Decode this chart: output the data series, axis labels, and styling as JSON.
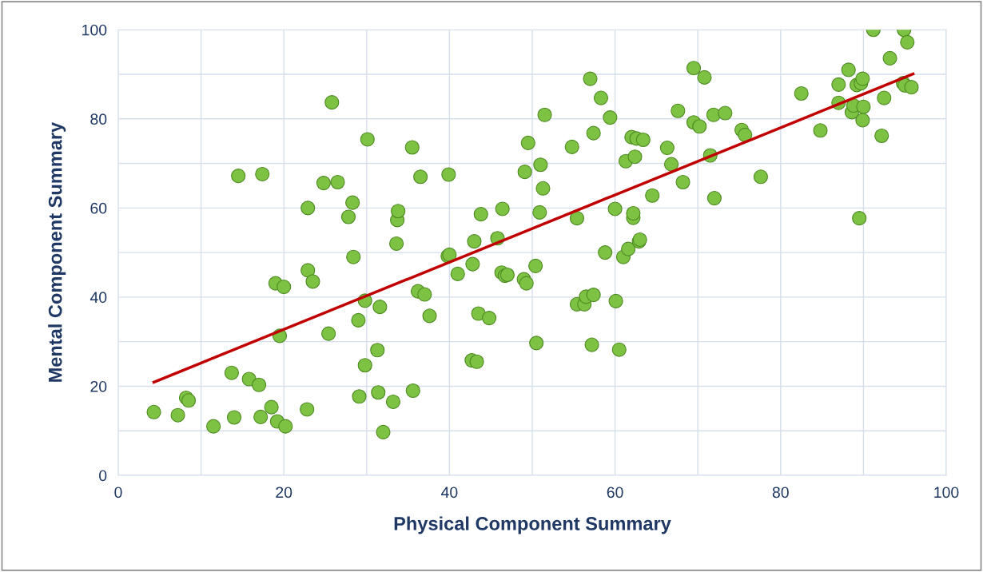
{
  "chart_data": {
    "type": "scatter",
    "xlabel": "Physical Component Summary",
    "ylabel": "Mental Component Summary",
    "xlim": [
      0,
      100
    ],
    "xticks": [
      0,
      20,
      40,
      60,
      80,
      100
    ],
    "ylim": [
      0,
      100
    ],
    "yticks": [
      0,
      20,
      40,
      60,
      80,
      100
    ],
    "grid": true,
    "series": [
      {
        "marker": "circle",
        "color": "#7dc242",
        "x": [
          4.3,
          7.2,
          8.2,
          8.5,
          11.5,
          13.7,
          14,
          14.5,
          15.8,
          17,
          17.2,
          17.4,
          18.5,
          19,
          19.2,
          19.5,
          20,
          20.2,
          22.8,
          22.9,
          22.9,
          23.5,
          24.8,
          25.4,
          25.8,
          26.5,
          27.8,
          28.3,
          28.4,
          29,
          29.1,
          29.8,
          29.8,
          30.1,
          31.3,
          31.4,
          31.6,
          32,
          33.2,
          33.6,
          33.7,
          33.8,
          35.5,
          35.6,
          36.2,
          36.5,
          37,
          37.6,
          39.8,
          39.9,
          40,
          41,
          42.7,
          42.8,
          43,
          43.3,
          43.5,
          43.8,
          44.8,
          45.8,
          46.3,
          46.4,
          46.7,
          47,
          49,
          49.1,
          49.3,
          49.5,
          50.4,
          50.5,
          50.9,
          51,
          51.3,
          51.5,
          54.8,
          55.4,
          55.4,
          56.3,
          56.5,
          57,
          57.2,
          57.4,
          57.4,
          58.3,
          58.8,
          59.4,
          60,
          60.1,
          60.5,
          61,
          61.3,
          61.6,
          62,
          62.2,
          62.2,
          62.4,
          62.6,
          62.9,
          63,
          63.4,
          64.5,
          66.3,
          66.8,
          67.6,
          68.2,
          69.5,
          69.5,
          70.2,
          70.8,
          71.5,
          71.9,
          72,
          73.3,
          75.3,
          75.7,
          77.6,
          82.5,
          84.8,
          87,
          87,
          88.2,
          88.6,
          88.8,
          89.2,
          89.5,
          89.7,
          89.9,
          89.9,
          90,
          91.2,
          92.2,
          92.5,
          93.2,
          94.8,
          94.9,
          95,
          95.3,
          95.8
        ],
        "values": [
          14.2,
          13.5,
          17.4,
          16.8,
          11,
          23,
          13,
          67.2,
          21.6,
          20.3,
          13.1,
          67.6,
          15.3,
          43.1,
          12.1,
          31.3,
          42.3,
          11,
          14.8,
          46,
          60,
          43.5,
          65.6,
          31.8,
          83.7,
          65.8,
          58,
          61.2,
          49,
          34.8,
          17.7,
          24.7,
          39.2,
          75.4,
          28.1,
          18.6,
          37.8,
          9.7,
          16.5,
          52,
          57.3,
          59.3,
          73.6,
          19,
          41.3,
          67,
          40.6,
          35.8,
          49.2,
          67.5,
          49.5,
          45.2,
          25.8,
          47.4,
          52.5,
          25.5,
          36.3,
          58.6,
          35.3,
          53.2,
          45.5,
          59.8,
          44.8,
          45,
          44,
          68.1,
          43.1,
          74.6,
          47,
          29.7,
          59,
          69.7,
          64.4,
          80.9,
          73.7,
          57.7,
          38.4,
          38.4,
          40.1,
          89,
          29.3,
          76.8,
          40.5,
          84.7,
          50,
          80.3,
          59.8,
          39.1,
          28.2,
          49,
          70.5,
          50.8,
          75.9,
          57.8,
          58.8,
          71.5,
          75.6,
          52.5,
          52.9,
          75.3,
          62.8,
          73.5,
          69.8,
          81.8,
          65.8,
          91.4,
          79.2,
          78.3,
          89.3,
          71.8,
          80.9,
          62.2,
          81.3,
          77.5,
          76.4,
          67,
          85.7,
          77.4,
          87.7,
          83.6,
          91,
          81.5,
          83,
          87.6,
          57.7,
          88,
          89,
          79.7,
          82.7,
          100,
          76.2,
          84.7,
          93.6,
          88,
          100,
          87.5,
          97.2,
          87.1
        ]
      },
      {
        "type": "line",
        "color": "#c00000",
        "x": [
          4.3,
          96
        ],
        "values": [
          20.9,
          90.1
        ]
      }
    ]
  }
}
